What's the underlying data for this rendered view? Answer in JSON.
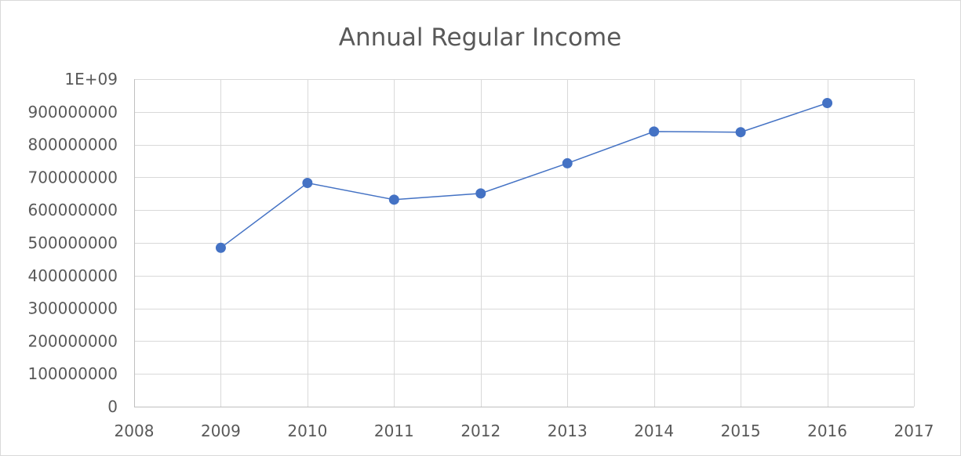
{
  "chart_data": {
    "type": "scatter",
    "title": "Annual Regular Income",
    "xlabel": "",
    "ylabel": "",
    "xlim": [
      2008,
      2017
    ],
    "ylim": [
      0,
      1000000000
    ],
    "x_ticks": [
      2008,
      2009,
      2010,
      2011,
      2012,
      2013,
      2014,
      2015,
      2016,
      2017
    ],
    "y_ticks": [
      0,
      100000000,
      200000000,
      300000000,
      400000000,
      500000000,
      600000000,
      700000000,
      800000000,
      900000000,
      1000000000
    ],
    "x_tick_labels": [
      "2008",
      "2009",
      "2010",
      "2011",
      "2012",
      "2013",
      "2014",
      "2015",
      "2016",
      "2017"
    ],
    "y_tick_labels": [
      "0",
      "100000000",
      "200000000",
      "300000000",
      "400000000",
      "500000000",
      "600000000",
      "700000000",
      "800000000",
      "900000000",
      "1E+09"
    ],
    "grid": true,
    "legend": "none",
    "series": [
      {
        "color": "#4472c4",
        "marker": "circle",
        "line": true,
        "points": [
          {
            "x": 2009,
            "y": 485000000
          },
          {
            "x": 2010,
            "y": 683000000
          },
          {
            "x": 2011,
            "y": 632000000
          },
          {
            "x": 2012,
            "y": 651000000
          },
          {
            "x": 2013,
            "y": 743000000
          },
          {
            "x": 2014,
            "y": 840000000
          },
          {
            "x": 2015,
            "y": 838000000
          },
          {
            "x": 2016,
            "y": 927000000
          }
        ]
      }
    ]
  }
}
